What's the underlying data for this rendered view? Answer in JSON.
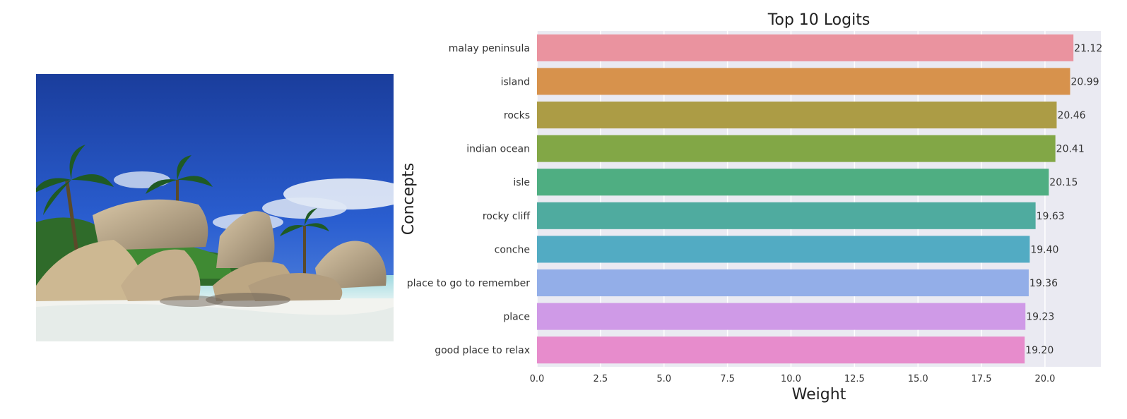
{
  "chart_data": {
    "type": "bar",
    "orientation": "horizontal",
    "title": "Top 10 Logits",
    "xlabel": "Weight",
    "ylabel": "Concepts",
    "xlim": [
      0,
      22.2
    ],
    "xticks": [
      0.0,
      2.5,
      5.0,
      7.5,
      10.0,
      12.5,
      15.0,
      17.5,
      20.0
    ],
    "xtick_labels": [
      "0.0",
      "2.5",
      "5.0",
      "7.5",
      "10.0",
      "12.5",
      "15.0",
      "17.5",
      "20.0"
    ],
    "grid": true,
    "categories": [
      "malay peninsula",
      "island",
      "rocks",
      "indian ocean",
      "isle",
      "rocky cliff",
      "conche",
      "place to go to remember",
      "place",
      "good place to relax"
    ],
    "values": [
      21.12,
      20.99,
      20.46,
      20.41,
      20.15,
      19.63,
      19.4,
      19.36,
      19.23,
      19.2
    ],
    "value_labels": [
      "21.12",
      "20.99",
      "20.46",
      "20.41",
      "20.15",
      "19.63",
      "19.40",
      "19.36",
      "19.23",
      "19.20"
    ],
    "colors": [
      "#ea939f",
      "#d7924c",
      "#ac9c45",
      "#82a746",
      "#4fae82",
      "#4fab9f",
      "#52abc3",
      "#93aee8",
      "#cf9ae7",
      "#e78ccc"
    ],
    "plot_background": "#eaeaf2"
  },
  "image_panel": {
    "icon": "tropical-beach-photo"
  }
}
